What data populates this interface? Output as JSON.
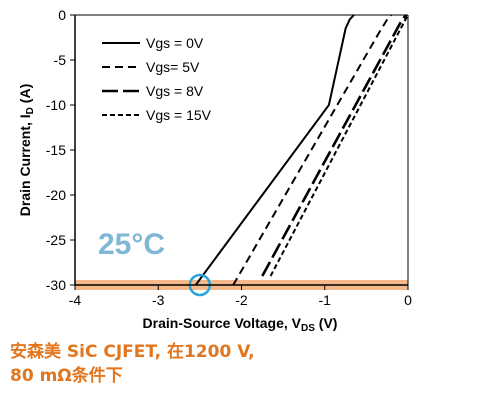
{
  "chart_data": {
    "type": "line",
    "xlabel": "Drain-Source Voltage, V",
    "xlabel_sub": "DS",
    "xlabel_unit": " (V)",
    "ylabel": "Drain Current, I",
    "ylabel_sub": "D",
    "ylabel_unit": " (A)",
    "xlim": [
      -4,
      0
    ],
    "ylim": [
      -30,
      0
    ],
    "xticks": [
      -4,
      -3,
      -2,
      -1,
      0
    ],
    "yticks": [
      0,
      -5,
      -10,
      -15,
      -20,
      -25,
      -30
    ],
    "grid": false,
    "legend_position": "top-left",
    "annotation": "25°C",
    "highlight": {
      "x": -2.5,
      "y": -30,
      "band_y": -30,
      "band_color": "#f5b88a",
      "circle_color": "#2aa6d6"
    },
    "series": [
      {
        "name": "Vgs = 0V",
        "style": "solid",
        "points": [
          [
            -2.55,
            -30
          ],
          [
            -0.95,
            -10
          ],
          [
            -0.75,
            -1.5
          ],
          [
            -0.7,
            -0.5
          ],
          [
            -0.65,
            0
          ]
        ]
      },
      {
        "name": "Vgs= 5V",
        "style": "dash",
        "points": [
          [
            -2.1,
            -30
          ],
          [
            -0.35,
            -2
          ],
          [
            -0.25,
            -0.5
          ],
          [
            -0.2,
            0
          ]
        ]
      },
      {
        "name": "Vgs = 8V",
        "style": "longdash",
        "points": [
          [
            -1.75,
            -29
          ],
          [
            -0.07,
            -0.5
          ],
          [
            -0.02,
            0
          ]
        ]
      },
      {
        "name": "Vgs = 15V",
        "style": "shortdash",
        "points": [
          [
            -1.65,
            -29
          ],
          [
            -0.03,
            -0.5
          ],
          [
            0,
            0
          ]
        ]
      }
    ]
  },
  "caption": {
    "line1": "安森美 SiC CJFET, 在1200 V,",
    "line2": "80 mΩ条件下"
  },
  "colors": {
    "caption": "#e2761f",
    "annotation": "#7fb7d4",
    "band": "#f5b88a",
    "circle": "#2aa6d6"
  }
}
